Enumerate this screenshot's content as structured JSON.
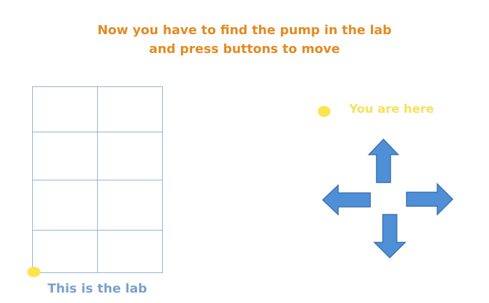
{
  "instruction": {
    "line1": "Now you have to find the pump in the lab",
    "line2": "and press buttons to move"
  },
  "lab": {
    "label": "This is the lab",
    "rows": 4,
    "cols": 2,
    "player_cell": {
      "row": 4,
      "col": 1,
      "corner": "bottom-left"
    }
  },
  "legend": {
    "label": "You are here"
  },
  "controls": {
    "buttons": [
      "up",
      "left",
      "right",
      "down"
    ]
  },
  "colors": {
    "instruction_text": "#e48a1f",
    "lab_label": "#7aa0cf",
    "legend_label": "#f7e15a",
    "player_marker": "#fbe54d",
    "grid_lines": "#8fb3d6",
    "arrow_fill": "#4f8fd6",
    "arrow_stroke": "#3a72b3"
  }
}
